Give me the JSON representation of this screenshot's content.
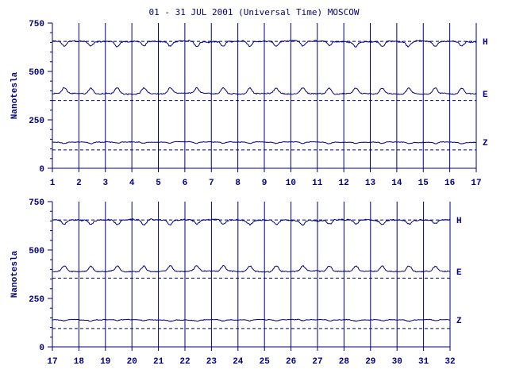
{
  "chart_data": {
    "type": "line",
    "title": "01 - 31 JUL 2001 (Universal Time) MOSCOW",
    "ylabel": "Nanotesla",
    "ylim": [
      0,
      750
    ],
    "yticks": [
      0,
      250,
      500,
      750
    ],
    "line_color": "#000080",
    "panels": [
      {
        "xlim": [
          1,
          17
        ],
        "xticks": [
          "1",
          "2",
          "3",
          "4",
          "5",
          "6",
          "7",
          "8",
          "9",
          "10",
          "11",
          "12",
          "13",
          "14",
          "15",
          "16",
          "17"
        ],
        "series": [
          {
            "name": "H",
            "baseline": 655,
            "dashed_ref": 655,
            "daily_amp": 25,
            "noise": 6
          },
          {
            "name": "E",
            "baseline": 385,
            "dashed_ref": 350,
            "daily_amp": 30,
            "noise": 5
          },
          {
            "name": "Z",
            "baseline": 135,
            "dashed_ref": 95,
            "daily_amp": 7,
            "noise": 3
          }
        ]
      },
      {
        "xlim": [
          17,
          32
        ],
        "xticks": [
          "17",
          "18",
          "19",
          "20",
          "21",
          "22",
          "23",
          "24",
          "25",
          "26",
          "27",
          "28",
          "29",
          "30",
          "31",
          "32"
        ],
        "series": [
          {
            "name": "H",
            "baseline": 655,
            "dashed_ref": 655,
            "daily_amp": 22,
            "noise": 6
          },
          {
            "name": "E",
            "baseline": 390,
            "dashed_ref": 355,
            "daily_amp": 28,
            "noise": 5
          },
          {
            "name": "Z",
            "baseline": 140,
            "dashed_ref": 95,
            "daily_amp": 6,
            "noise": 3
          }
        ]
      }
    ]
  }
}
